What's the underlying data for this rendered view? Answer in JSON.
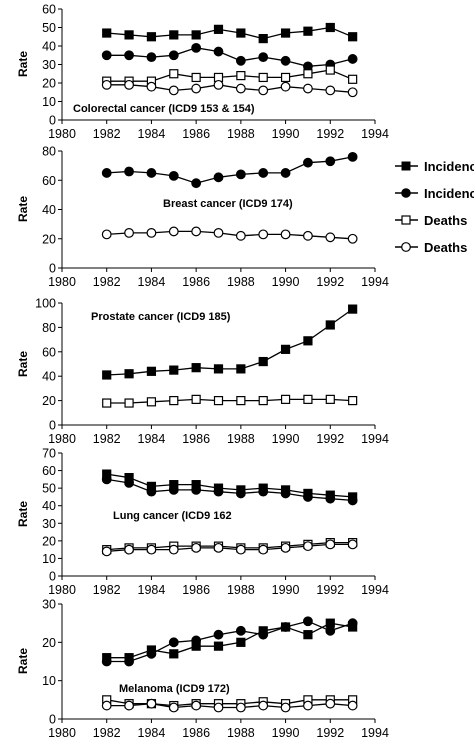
{
  "chart_data": [
    {
      "type": "line",
      "title": "Colorectal cancer (ICD9 153 & 154)",
      "ylabel": "Rate",
      "xlim": [
        1980,
        1994
      ],
      "ylim": [
        0,
        60
      ],
      "x_ticks": [
        1980,
        1982,
        1984,
        1986,
        1988,
        1990,
        1992,
        1994
      ],
      "y_ticks": [
        0,
        10,
        20,
        30,
        40,
        50,
        60
      ],
      "x": [
        1982,
        1983,
        1984,
        1985,
        1986,
        1987,
        1988,
        1989,
        1990,
        1991,
        1992,
        1993
      ],
      "series": [
        {
          "marker": "filled-square",
          "values": [
            47,
            46,
            45,
            46,
            46,
            49,
            47,
            44,
            47,
            48,
            50,
            45
          ]
        },
        {
          "marker": "filled-circle",
          "values": [
            35,
            35,
            34,
            35,
            39,
            37,
            32,
            34,
            32,
            29,
            30,
            33
          ]
        },
        {
          "marker": "open-square",
          "values": [
            21,
            21,
            21,
            25,
            23,
            23,
            24,
            23,
            23,
            25,
            27,
            22
          ]
        },
        {
          "marker": "open-circle",
          "values": [
            19,
            19,
            18,
            16,
            17,
            19,
            17,
            16,
            18,
            17,
            16,
            15
          ]
        }
      ]
    },
    {
      "type": "line",
      "title": "Breast cancer (ICD9 174)",
      "ylabel": "Rate",
      "xlim": [
        1980,
        1994
      ],
      "ylim": [
        0,
        80
      ],
      "x_ticks": [
        1980,
        1982,
        1984,
        1986,
        1988,
        1990,
        1992,
        1994
      ],
      "y_ticks": [
        0,
        20,
        40,
        60,
        80
      ],
      "x": [
        1982,
        1983,
        1984,
        1985,
        1986,
        1987,
        1988,
        1989,
        1990,
        1991,
        1992,
        1993
      ],
      "series": [
        {
          "marker": "filled-circle",
          "values": [
            65,
            66,
            65,
            63,
            58,
            62,
            64,
            65,
            65,
            72,
            73,
            76
          ]
        },
        {
          "marker": "open-circle",
          "values": [
            23,
            24,
            24,
            25,
            25,
            24,
            22,
            23,
            23,
            22,
            21,
            20
          ]
        }
      ]
    },
    {
      "type": "line",
      "title": "Prostate cancer (ICD9 185)",
      "ylabel": "Rate",
      "xlim": [
        1980,
        1994
      ],
      "ylim": [
        0,
        100
      ],
      "x_ticks": [
        1980,
        1982,
        1984,
        1986,
        1988,
        1990,
        1992,
        1994
      ],
      "y_ticks": [
        0,
        20,
        40,
        60,
        80,
        100
      ],
      "x": [
        1982,
        1983,
        1984,
        1985,
        1986,
        1987,
        1988,
        1989,
        1990,
        1991,
        1992,
        1993
      ],
      "series": [
        {
          "marker": "filled-square",
          "values": [
            41,
            42,
            44,
            45,
            47,
            46,
            46,
            52,
            62,
            69,
            82,
            95
          ]
        },
        {
          "marker": "open-square",
          "values": [
            18,
            18,
            19,
            20,
            21,
            20,
            20,
            20,
            21,
            21,
            21,
            20
          ]
        }
      ]
    },
    {
      "type": "line",
      "title": "Lung cancer (ICD9 162",
      "ylabel": "Rate",
      "xlim": [
        1980,
        1994
      ],
      "ylim": [
        0,
        70
      ],
      "x_ticks": [
        1980,
        1982,
        1984,
        1986,
        1988,
        1990,
        1992,
        1994
      ],
      "y_ticks": [
        0,
        10,
        20,
        30,
        40,
        50,
        60,
        70
      ],
      "x": [
        1982,
        1983,
        1984,
        1985,
        1986,
        1987,
        1988,
        1989,
        1990,
        1991,
        1992,
        1993
      ],
      "series": [
        {
          "marker": "filled-square",
          "values": [
            58,
            56,
            51,
            52,
            52,
            50,
            49,
            50,
            49,
            47,
            46,
            45
          ]
        },
        {
          "marker": "filled-circle",
          "values": [
            55,
            53,
            48,
            49,
            49,
            48,
            47,
            48,
            47,
            45,
            44,
            43
          ]
        },
        {
          "marker": "open-square",
          "values": [
            15,
            16,
            16,
            17,
            17,
            17,
            16,
            16,
            17,
            18,
            19,
            19
          ]
        },
        {
          "marker": "open-circle",
          "values": [
            14,
            15,
            15,
            15,
            16,
            16,
            15,
            15,
            16,
            17,
            18,
            18
          ]
        }
      ]
    },
    {
      "type": "line",
      "title": "Melanoma (ICD9 172)",
      "ylabel": "Rate",
      "xlim": [
        1980,
        1994
      ],
      "ylim": [
        0,
        30
      ],
      "x_ticks": [
        1980,
        1982,
        1984,
        1986,
        1988,
        1990,
        1992,
        1994
      ],
      "y_ticks": [
        0,
        10,
        20,
        30
      ],
      "x": [
        1982,
        1983,
        1984,
        1985,
        1986,
        1987,
        1988,
        1989,
        1990,
        1991,
        1992,
        1993
      ],
      "series": [
        {
          "marker": "filled-square",
          "values": [
            16,
            16,
            18,
            17,
            19,
            19,
            20,
            23,
            24,
            22,
            25,
            24
          ]
        },
        {
          "marker": "filled-circle",
          "values": [
            15,
            15,
            17,
            20,
            20.5,
            22,
            23,
            22,
            24,
            25.5,
            23,
            25
          ]
        },
        {
          "marker": "open-square",
          "values": [
            5,
            4,
            4,
            3.5,
            4,
            4,
            4,
            4.5,
            4,
            5,
            5,
            5
          ]
        },
        {
          "marker": "open-circle",
          "values": [
            3.5,
            3.5,
            4,
            3,
            3.5,
            3,
            3,
            3.5,
            3,
            3.5,
            4,
            3.5
          ]
        }
      ]
    }
  ],
  "legend": {
    "placement": "right",
    "items": [
      {
        "marker": "filled-square",
        "label": "Incidenc"
      },
      {
        "marker": "filled-circle",
        "label": "Incidenc"
      },
      {
        "marker": "open-square",
        "label": "Deaths"
      },
      {
        "marker": "open-circle",
        "label": "Deaths"
      }
    ]
  }
}
